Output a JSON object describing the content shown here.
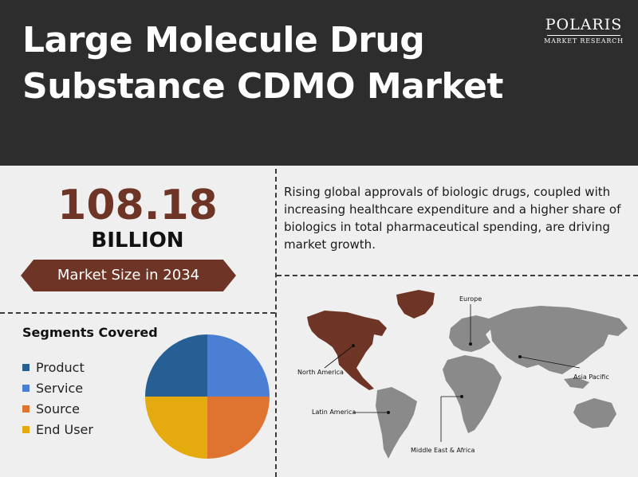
{
  "header": {
    "title_line1": "Large Molecule Drug",
    "title_line2": "Substance CDMO Market"
  },
  "logo": {
    "name": "POLARIS",
    "subtitle": "MARKET RESEARCH"
  },
  "market": {
    "value": "108.18",
    "unit": "BILLION",
    "label": "Market Size in 2034"
  },
  "description": "Rising global approvals of biologic drugs, coupled with increasing healthcare expenditure and a higher share of biologics in total pharmaceutical spending, are driving market growth.",
  "segments": {
    "title": "Segments Covered",
    "items": [
      {
        "label": "Product",
        "color": "#265f94"
      },
      {
        "label": "Service",
        "color": "#4b7fd4"
      },
      {
        "label": "Source",
        "color": "#df7430"
      },
      {
        "label": "End User",
        "color": "#e5ab0e"
      }
    ]
  },
  "regions": {
    "north_america": "North America",
    "europe": "Europe",
    "asia_pacific": "Asia Pacific",
    "latin_america": "Latin America",
    "middle_east_africa": "Middle East & Africa"
  },
  "colors": {
    "header_bg": "#2d2d2d",
    "accent_brown": "#6e3526",
    "map_gray": "#8a8a8a"
  }
}
